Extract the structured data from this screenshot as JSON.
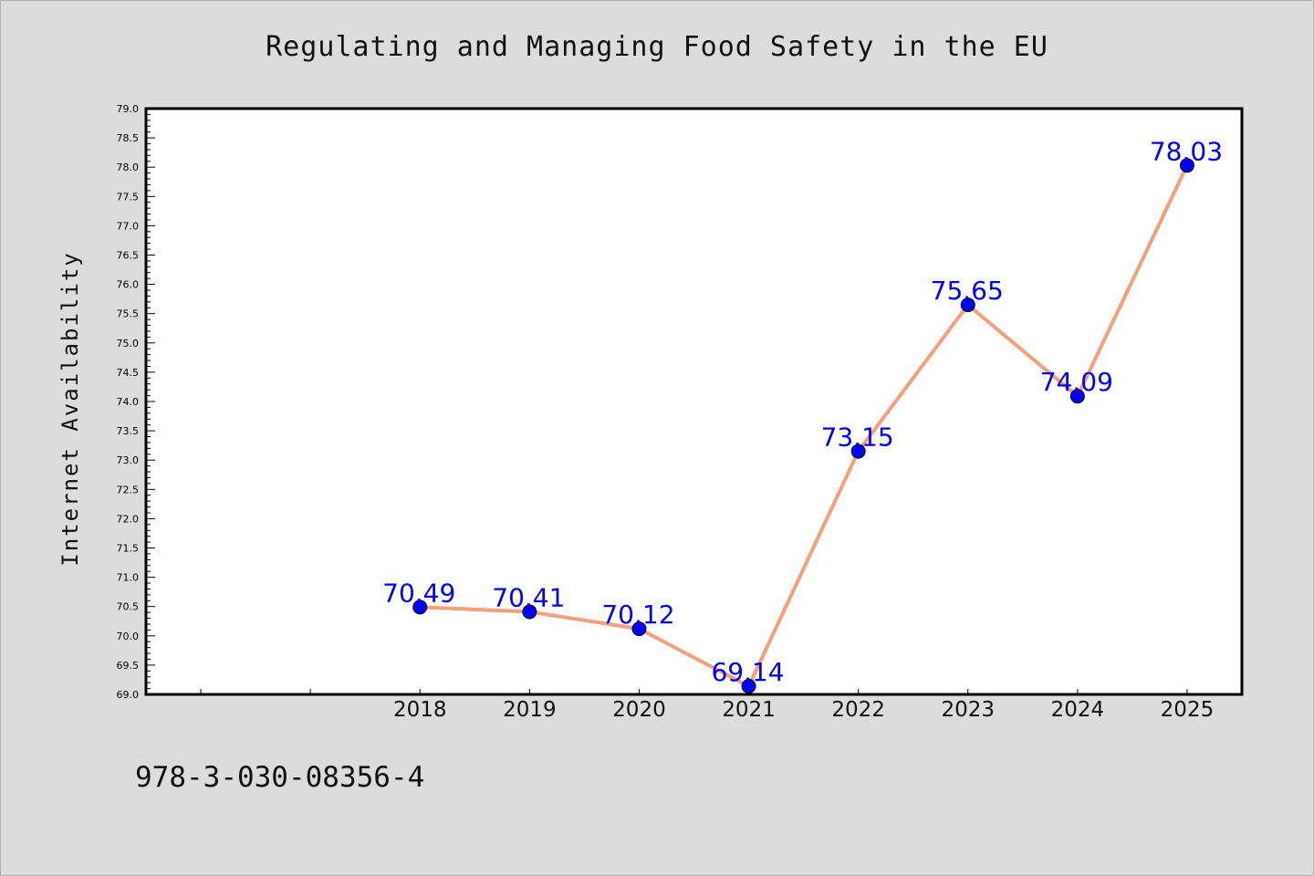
{
  "title": "Regulating and Managing Food Safety in the EU",
  "footer_text": "978-3-030-08356-4",
  "colors": {
    "line": "#f4a07a",
    "marker": "#0000ff",
    "label": "#0000ff",
    "background": "#dcdcdc",
    "plot_bg": "#ffffff"
  },
  "chart_data": {
    "type": "line",
    "title": "Regulating and Managing Food Safety in the EU",
    "xlabel": "",
    "ylabel": "Internet Availability",
    "x_ticks_unlabeled": [
      2016,
      2017
    ],
    "xlim": [
      2015.5,
      2025.5
    ],
    "ylim": [
      69.0,
      79.0
    ],
    "y_ticks": [
      "69.0",
      "69.5",
      "70.0",
      "70.5",
      "71.0",
      "71.5",
      "72.0",
      "72.5",
      "73.0",
      "73.5",
      "74.0",
      "74.5",
      "75.0",
      "75.5",
      "76.0",
      "76.5",
      "77.0",
      "77.5",
      "78.0",
      "78.5",
      "79.0"
    ],
    "grid": false,
    "categories": [
      "2018",
      "2019",
      "2020",
      "2021",
      "2022",
      "2023",
      "2024",
      "2025"
    ],
    "series": [
      {
        "values": [
          70.49,
          70.41,
          70.12,
          69.14,
          73.15,
          75.65,
          74.09,
          78.03
        ],
        "labels": [
          "70.49",
          "70.41",
          "70.12",
          "69.14",
          "73.15",
          "75.65",
          "74.09",
          "78.03"
        ]
      }
    ]
  }
}
